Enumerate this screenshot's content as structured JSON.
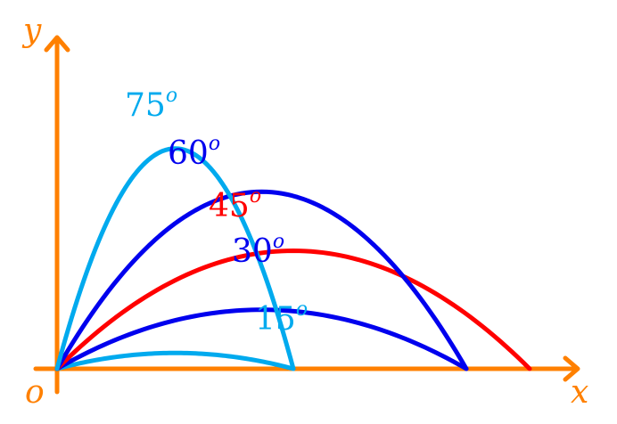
{
  "diagram": {
    "axes": {
      "color": "#ff8000",
      "x_label": "x",
      "y_label": "y",
      "origin_label": "o"
    },
    "trajectories": [
      {
        "angle_deg": 15,
        "label": "15",
        "degree_mark": "o",
        "color": "#00aaee"
      },
      {
        "angle_deg": 30,
        "label": "30",
        "degree_mark": "o",
        "color": "#0000ee"
      },
      {
        "angle_deg": 45,
        "label": "45",
        "degree_mark": "o",
        "color": "#ff0000"
      },
      {
        "angle_deg": 60,
        "label": "60",
        "degree_mark": "o",
        "color": "#0000ee"
      },
      {
        "angle_deg": 75,
        "label": "75",
        "degree_mark": "o",
        "color": "#00aaee"
      }
    ]
  }
}
